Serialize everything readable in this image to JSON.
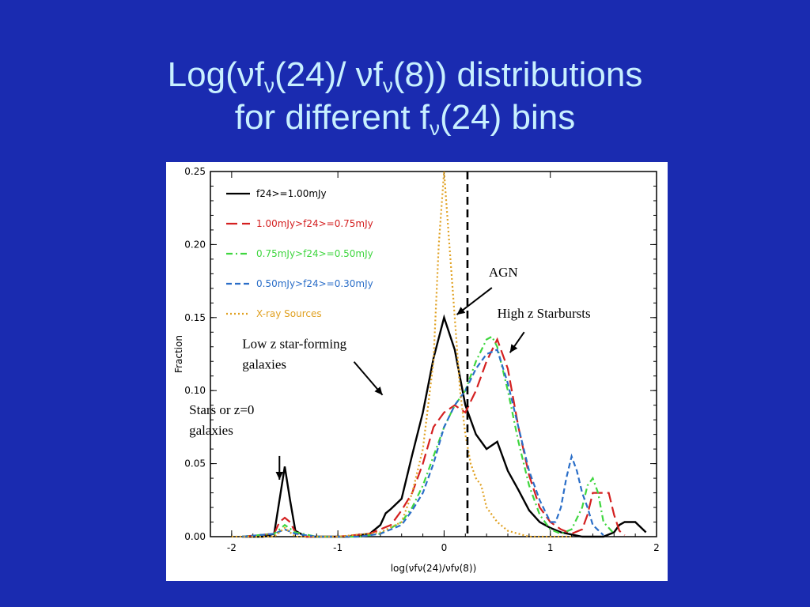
{
  "slide": {
    "title_line1": "Log(νf",
    "title_sub_nu": "ν",
    "title_part_24": "(24)/ νf",
    "title_part_8": "(8)) distributions",
    "title_line2_a": "for different f",
    "title_line2_b": "(24) bins",
    "background_color": "#1a2bb0",
    "title_color": "#c8f0ff"
  },
  "chart_data": {
    "type": "line",
    "xlabel": "log(νfν(24)/νfν(8))",
    "ylabel": "Fraction",
    "xlim": [
      -2.2,
      2.0
    ],
    "ylim": [
      0,
      0.25
    ],
    "x_ticks": [
      -2,
      -1,
      0,
      1,
      2
    ],
    "y_ticks": [
      "0.00",
      "0.05",
      "0.10",
      "0.15",
      "0.20",
      "0.25"
    ],
    "grid": false,
    "legend_position": "top-left",
    "series": [
      {
        "name": "f24>=1.00mJy",
        "color": "#000000",
        "dash": "solid",
        "x": [
          -1.9,
          -1.7,
          -1.6,
          -1.55,
          -1.5,
          -1.45,
          -1.4,
          -1.3,
          -1.1,
          -0.9,
          -0.7,
          -0.6,
          -0.55,
          -0.5,
          -0.4,
          -0.3,
          -0.2,
          -0.1,
          0.0,
          0.1,
          0.2,
          0.3,
          0.4,
          0.5,
          0.6,
          0.7,
          0.8,
          0.9,
          1.0,
          1.1,
          1.3,
          1.5,
          1.6,
          1.65,
          1.7,
          1.8,
          1.9
        ],
        "y": [
          0.0,
          0.0,
          0.002,
          0.025,
          0.048,
          0.025,
          0.004,
          0.0,
          0.0,
          0.0,
          0.002,
          0.008,
          0.016,
          0.019,
          0.026,
          0.056,
          0.085,
          0.122,
          0.15,
          0.128,
          0.09,
          0.07,
          0.06,
          0.065,
          0.045,
          0.032,
          0.018,
          0.01,
          0.006,
          0.003,
          0.0,
          0.0,
          0.003,
          0.008,
          0.01,
          0.01,
          0.003
        ]
      },
      {
        "name": "1.00mJy>f24>=0.75mJy",
        "color": "#d42020",
        "dash": "long",
        "x": [
          -1.9,
          -1.6,
          -1.55,
          -1.5,
          -1.45,
          -1.4,
          -1.3,
          -1.0,
          -0.7,
          -0.5,
          -0.4,
          -0.3,
          -0.2,
          -0.1,
          0.0,
          0.1,
          0.2,
          0.3,
          0.4,
          0.5,
          0.6,
          0.7,
          0.8,
          0.9,
          1.0,
          1.1,
          1.2,
          1.3,
          1.35,
          1.4,
          1.45,
          1.5,
          1.55,
          1.6,
          1.65,
          1.7
        ],
        "y": [
          0.0,
          0.002,
          0.01,
          0.013,
          0.01,
          0.003,
          0.0,
          0.0,
          0.002,
          0.008,
          0.018,
          0.03,
          0.05,
          0.075,
          0.085,
          0.09,
          0.085,
          0.1,
          0.12,
          0.135,
          0.115,
          0.075,
          0.042,
          0.02,
          0.01,
          0.005,
          0.002,
          0.005,
          0.015,
          0.03,
          0.03,
          0.03,
          0.03,
          0.015,
          0.004,
          0.001
        ]
      },
      {
        "name": "0.75mJy>f24>=0.50mJy",
        "color": "#3fd63f",
        "dash": "dashdot",
        "x": [
          -1.9,
          -1.6,
          -1.5,
          -1.4,
          -1.2,
          -0.8,
          -0.6,
          -0.4,
          -0.3,
          -0.2,
          -0.1,
          0.0,
          0.1,
          0.2,
          0.3,
          0.4,
          0.45,
          0.5,
          0.6,
          0.7,
          0.8,
          0.9,
          1.0,
          1.1,
          1.2,
          1.3,
          1.35,
          1.4,
          1.45,
          1.5,
          1.6
        ],
        "y": [
          0.0,
          0.002,
          0.008,
          0.003,
          0.0,
          0.0,
          0.002,
          0.01,
          0.02,
          0.035,
          0.055,
          0.075,
          0.09,
          0.1,
          0.12,
          0.135,
          0.137,
          0.13,
          0.1,
          0.065,
          0.035,
          0.015,
          0.005,
          0.002,
          0.005,
          0.02,
          0.035,
          0.04,
          0.03,
          0.01,
          0.002
        ]
      },
      {
        "name": "0.50mJy>f24>=0.30mJy",
        "color": "#2a6ec8",
        "dash": "short",
        "x": [
          -1.9,
          -1.6,
          -1.5,
          -1.4,
          -1.2,
          -0.8,
          -0.6,
          -0.4,
          -0.3,
          -0.2,
          -0.1,
          0.0,
          0.1,
          0.2,
          0.3,
          0.4,
          0.5,
          0.6,
          0.7,
          0.8,
          0.9,
          1.0,
          1.05,
          1.1,
          1.15,
          1.2,
          1.25,
          1.3,
          1.35,
          1.4,
          1.5
        ],
        "y": [
          0.0,
          0.002,
          0.005,
          0.002,
          0.0,
          0.0,
          0.002,
          0.008,
          0.018,
          0.03,
          0.05,
          0.075,
          0.09,
          0.1,
          0.115,
          0.125,
          0.128,
          0.105,
          0.075,
          0.045,
          0.025,
          0.01,
          0.01,
          0.02,
          0.04,
          0.055,
          0.045,
          0.03,
          0.02,
          0.008,
          0.001
        ]
      },
      {
        "name": "X-ray Sources",
        "color": "#e0a020",
        "dash": "dotted",
        "x": [
          -2.0,
          -1.6,
          -1.5,
          -1.4,
          -1.0,
          -0.6,
          -0.4,
          -0.3,
          -0.2,
          -0.1,
          -0.05,
          0.0,
          0.05,
          0.1,
          0.15,
          0.2,
          0.25,
          0.3,
          0.35,
          0.4,
          0.5,
          0.6,
          0.8,
          1.0,
          1.2
        ],
        "y": [
          0.0,
          0.0,
          0.006,
          0.0,
          0.0,
          0.003,
          0.01,
          0.03,
          0.06,
          0.12,
          0.2,
          0.25,
          0.2,
          0.15,
          0.1,
          0.07,
          0.05,
          0.04,
          0.035,
          0.02,
          0.01,
          0.004,
          0.0,
          0.0,
          0.0
        ]
      }
    ],
    "reference_line": {
      "x": 0.22,
      "dash": "dashed",
      "color": "#000000"
    },
    "annotations": [
      {
        "text": "AGN",
        "x": 0.42,
        "y": 0.178,
        "arrow_to": [
          0.12,
          0.152
        ]
      },
      {
        "text": "High z Starbursts",
        "x": 0.5,
        "y": 0.15,
        "arrow_to": [
          0.62,
          0.126
        ]
      },
      {
        "text": "Low z star-forming",
        "line2": "galaxies",
        "x": -1.9,
        "y": 0.129,
        "arrow_to": [
          -0.58,
          0.097
        ]
      },
      {
        "text": "Stars or z=0",
        "line2": "galaxies",
        "x": -2.4,
        "y": 0.084,
        "arrow_to": [
          -1.55,
          0.039
        ]
      }
    ]
  }
}
